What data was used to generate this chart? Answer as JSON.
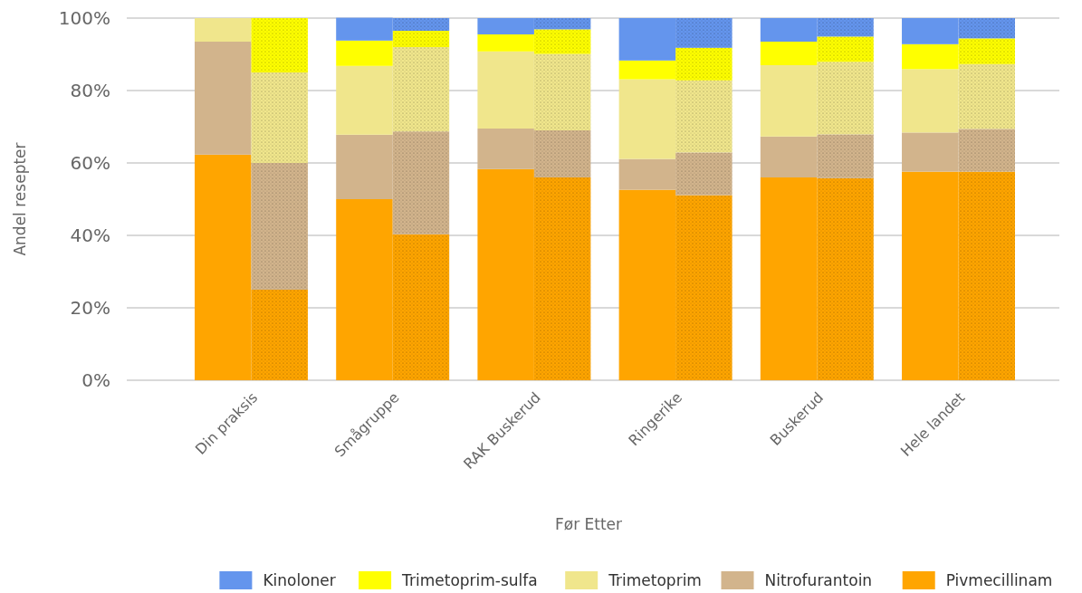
{
  "chart_data": {
    "type": "bar",
    "stacked": true,
    "xlabel": "Før Etter",
    "ylabel": "Andel resepter",
    "categories": [
      "Din praksis",
      null,
      "Smågruppe",
      null,
      "RAK Buskerud",
      null,
      "Ringerike",
      null,
      "Buskerud",
      null,
      "Hele landet",
      null
    ],
    "series": [
      {
        "name": "Pivmecillinam",
        "color": "#ffa500",
        "values": [
          62.3,
          25,
          50,
          40.3,
          58.3,
          56,
          52.6,
          51.1,
          56,
          55.8,
          57.6,
          57.6
        ]
      },
      {
        "name": "Nitrofurantoin",
        "color": "#d2b48c",
        "values": [
          31.2,
          35,
          17.8,
          28.4,
          11.2,
          13,
          8.5,
          11.8,
          11.3,
          12.1,
          10.8,
          11.8
        ]
      },
      {
        "name": "Trimetoprim",
        "color": "#f0e68c",
        "values": [
          6.5,
          25,
          19,
          23.3,
          21.3,
          21.1,
          22,
          19.9,
          19.7,
          20,
          17.5,
          17.9
        ]
      },
      {
        "name": "Trimetoprim-sulfa",
        "color": "#ffff00",
        "values": [
          0,
          15,
          7,
          4.5,
          4.7,
          6.8,
          5.2,
          9,
          6.5,
          7,
          6.9,
          7.1
        ]
      },
      {
        "name": "Kinoloner",
        "color": "#6495ed",
        "values": [
          0,
          0,
          6.3,
          3.5,
          4.5,
          3.1,
          11.7,
          8.2,
          6.5,
          5.1,
          7.2,
          5.6
        ]
      }
    ],
    "ylim": [
      0,
      100
    ],
    "yticks": [
      {
        "value": 0,
        "label": "0%"
      },
      {
        "value": 20,
        "label": "20%"
      },
      {
        "value": 40,
        "label": "40%"
      },
      {
        "value": 60,
        "label": "60%"
      },
      {
        "value": 80,
        "label": "80%"
      },
      {
        "value": 100,
        "label": "100%"
      }
    ],
    "grid": "y",
    "legend": "bottom"
  }
}
